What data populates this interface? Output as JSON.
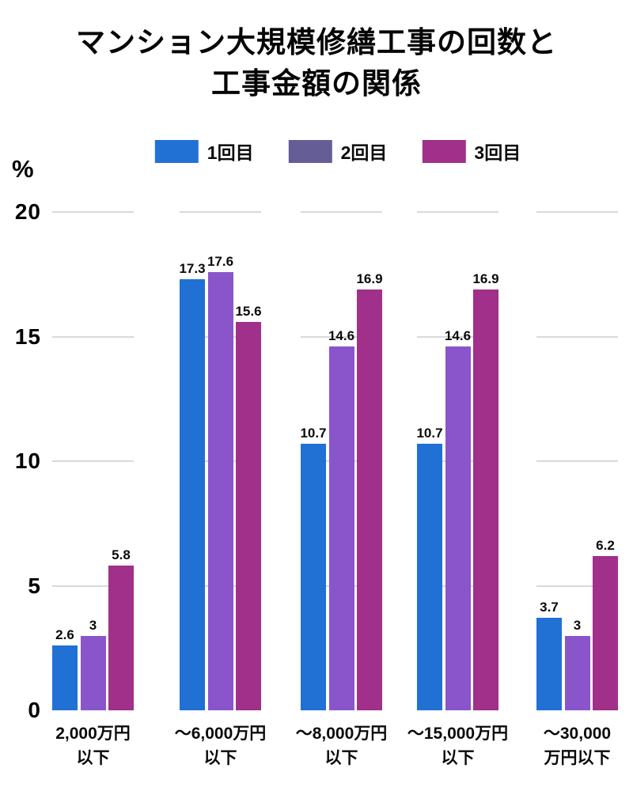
{
  "title": {
    "line1": "マンション大規模修繕工事の回数と",
    "line2": "工事金額の関係"
  },
  "legend": [
    {
      "label": "1回目",
      "swatch_color": "#2170D4"
    },
    {
      "label": "2回目",
      "swatch_color": "#655E96"
    },
    {
      "label": "3回目",
      "swatch_color": "#A03089"
    }
  ],
  "y_axis": {
    "unit_label": "%",
    "tick_labels": [
      "0",
      "5",
      "10",
      "15",
      "20"
    ]
  },
  "chart_data": {
    "type": "bar",
    "title": "マンション大規模修繕工事の回数と工事金額の関係",
    "categories": [
      "2,000万円以下",
      "～6,000万円以下",
      "～8,000万円以下",
      "～15,000万円以下",
      "～30,000万円以下"
    ],
    "category_lines": [
      [
        "2,000万円",
        "以下"
      ],
      [
        "～6,000万円",
        "以下"
      ],
      [
        "～8,000万円",
        "以下"
      ],
      [
        "～15,000万円",
        "以下"
      ],
      [
        "～30,000",
        "万円以下"
      ]
    ],
    "series": [
      {
        "name": "1回目",
        "color": "#2170D4",
        "values": [
          2.6,
          17.3,
          10.7,
          10.7,
          3.7
        ]
      },
      {
        "name": "2回目",
        "color": "#8A55CB",
        "values": [
          3,
          17.6,
          14.6,
          14.6,
          3
        ]
      },
      {
        "name": "3回目",
        "color": "#A03089",
        "values": [
          5.8,
          15.6,
          16.9,
          16.9,
          6.2
        ]
      }
    ],
    "value_labels": [
      [
        "2.6",
        "17.3",
        "10.7",
        "10.7",
        "3.7"
      ],
      [
        "3",
        "17.6",
        "14.6",
        "14.6",
        "3"
      ],
      [
        "5.8",
        "15.6",
        "16.9",
        "16.9",
        "6.2"
      ]
    ],
    "ylabel": "%",
    "ylim": [
      0,
      20
    ],
    "y_ticks": [
      0,
      5,
      10,
      15,
      20
    ],
    "grid": "horizontal-segmented-per-group",
    "gridline_color": "#D9D9D9",
    "legend_position": "top"
  }
}
